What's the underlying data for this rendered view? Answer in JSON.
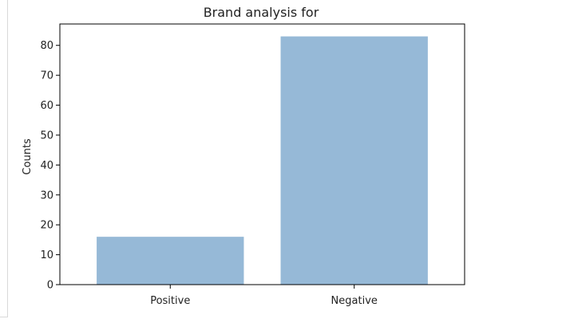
{
  "chart_data": {
    "type": "bar",
    "title": "Brand analysis for",
    "xlabel": "",
    "ylabel": "Counts",
    "categories": [
      "Positive",
      "Negative"
    ],
    "values": [
      16,
      83
    ],
    "ylim": [
      0,
      87.15
    ],
    "yticks": [
      0,
      10,
      20,
      30,
      40,
      50,
      60,
      70,
      80
    ],
    "bar_color": "#96b9d7",
    "grid": false,
    "legend": "none"
  }
}
